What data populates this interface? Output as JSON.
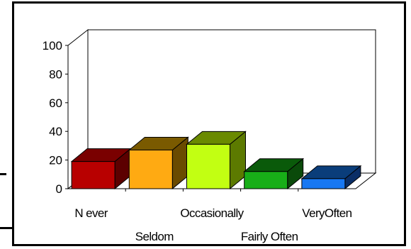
{
  "chart_data": {
    "type": "bar",
    "style": "3d",
    "title": "",
    "xlabel": "",
    "ylabel": "",
    "ylim": [
      0,
      100
    ],
    "yticks": [
      0,
      20,
      40,
      60,
      80,
      100
    ],
    "grid": false,
    "legend": "none",
    "categories": [
      "Never",
      "Seldom",
      "Occasionally",
      "Fairly Often",
      "Very Often"
    ],
    "category_display": [
      "N ever",
      "Seldom",
      "Occasionally",
      "Fairly Often",
      "VeryOften"
    ],
    "values": [
      19,
      27,
      31,
      12,
      7
    ],
    "colors": {
      "front": [
        "#b80000",
        "#ffaa12",
        "#c2ff12",
        "#18ae18",
        "#1878f2"
      ],
      "top": [
        "#7a0000",
        "#7a5a00",
        "#6a8a00",
        "#0a5a0a",
        "#0a3d7a"
      ],
      "side": [
        "#5c0000",
        "#6a4a00",
        "#5c7a00",
        "#0a4a0a",
        "#0a2e66"
      ]
    }
  }
}
